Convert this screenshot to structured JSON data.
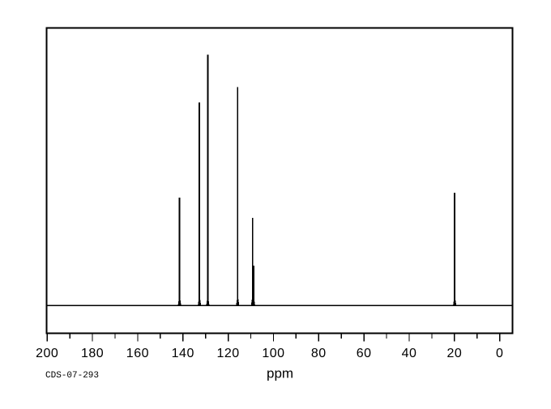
{
  "page": {
    "background_color": "#ffffff",
    "ink_color": "#000000"
  },
  "chart_data": {
    "type": "line",
    "subtype": "nmr-spectrum",
    "title": "",
    "xlabel": "ppm",
    "ylabel": "",
    "grid": false,
    "legend": false,
    "x_axis": {
      "unit": "ppm",
      "reversed": true,
      "visible_range": [
        200.5,
        -5.5
      ],
      "major_ticks": [
        200,
        180,
        160,
        140,
        120,
        100,
        80,
        60,
        40,
        20,
        0
      ],
      "minor_ticks": [
        190,
        170,
        150,
        130,
        110,
        90,
        70,
        50,
        30,
        10
      ],
      "tick_label_values": [
        "200",
        "180",
        "160",
        "140",
        "120",
        "100",
        "80",
        "60",
        "40",
        "20",
        "0"
      ]
    },
    "y_axis": {
      "shown": false,
      "note": "intensity, arbitrary units, normalized to tallest peak = 1.0"
    },
    "baseline": true,
    "peaks": [
      {
        "ppm": 141.5,
        "intensity": 0.43
      },
      {
        "ppm": 132.7,
        "intensity": 0.81
      },
      {
        "ppm": 129.0,
        "intensity": 1.0
      },
      {
        "ppm": 115.8,
        "intensity": 0.87
      },
      {
        "ppm": 109.2,
        "intensity": 0.35
      },
      {
        "ppm": 108.8,
        "intensity": 0.16
      },
      {
        "ppm": 19.9,
        "intensity": 0.45
      }
    ],
    "annotation": "CDS-07-293"
  },
  "labels": {
    "xlabel": "ppm",
    "sample_id": "CDS-07-293"
  }
}
